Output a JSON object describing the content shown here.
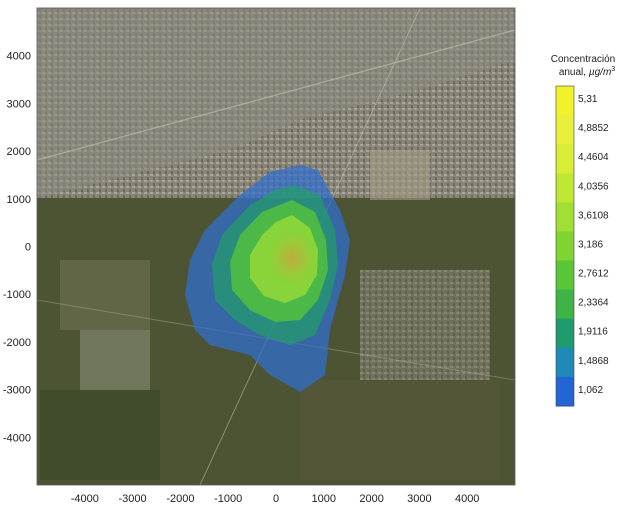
{
  "chart_data": {
    "type": "heatmap",
    "title": "",
    "xlabel": "",
    "ylabel": "",
    "xlim": [
      -5000,
      5000
    ],
    "ylim": [
      -5000,
      5000
    ],
    "x_ticks": [
      -4000,
      -3000,
      -2000,
      -1000,
      0,
      1000,
      2000,
      3000,
      4000
    ],
    "y_ticks": [
      4000,
      3000,
      2000,
      1000,
      0,
      -1000,
      -2000,
      -3000,
      -4000
    ],
    "colorbar": {
      "title_line1": "Concentración",
      "title_line2_prefix": "anual, ",
      "title_unit": "µg/m",
      "title_unit_exp": "3",
      "levels": [
        "5,31",
        "4,8852",
        "4,4604",
        "4,0356",
        "3,6108",
        "3,186",
        "2,7612",
        "2,3364",
        "1,9116",
        "1,4868",
        "1,062"
      ],
      "colors": [
        "#f2f22a",
        "#e8f03a",
        "#d8ee36",
        "#bfe834",
        "#a2df35",
        "#7fd432",
        "#58c636",
        "#3db445",
        "#1f9c6f",
        "#1f8ab8",
        "#2266d6"
      ]
    },
    "grid": false,
    "background": "satellite-imagery"
  }
}
